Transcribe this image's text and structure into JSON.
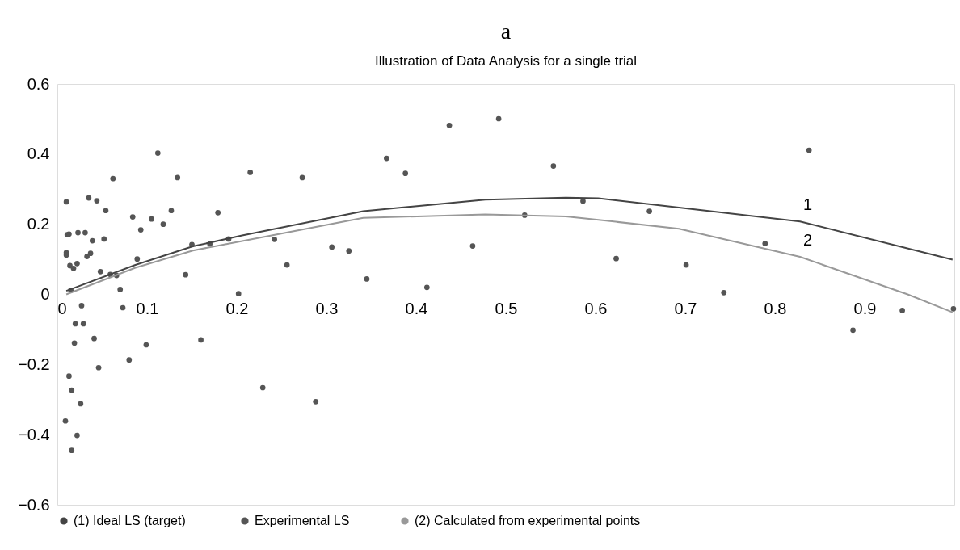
{
  "chart_data": {
    "type": "scatter",
    "title": "a",
    "subtitle": "Illustration of Data Analysis for a single trial",
    "xlim": [
      0,
      1
    ],
    "xticks": [
      0,
      0.1,
      0.2,
      0.3,
      0.4,
      0.5,
      0.6,
      0.7,
      0.8,
      0.9
    ],
    "ylim": [
      -0.6,
      0.6
    ],
    "yticks": [
      {
        "value": -0.6,
        "label": "−0.6"
      },
      {
        "value": -0.4,
        "label": "−0.4"
      },
      {
        "value": -0.2,
        "label": "−0.2"
      },
      0,
      0.2,
      0.4,
      0.6
    ],
    "grid": false,
    "legend": "bottom",
    "series": [
      {
        "name": "(1)  Ideal LS (target)",
        "type": "line",
        "color": "#444444",
        "marker": "none",
        "line_style": "solid",
        "x": [
          0.01,
          0.087,
          0.151,
          0.206,
          0.341,
          0.477,
          0.567,
          0.603,
          0.828,
          0.998
        ],
        "values": [
          0.01,
          0.084,
          0.137,
          0.168,
          0.237,
          0.27,
          0.276,
          0.274,
          0.208,
          0.099
        ]
      },
      {
        "name": "Experimental LS",
        "color": "#555555",
        "marker": "circle",
        "x": [
          0.01,
          0.011,
          0.013,
          0.01,
          0.01,
          0.014,
          0.018,
          0.022,
          0.015,
          0.023,
          0.031,
          0.035,
          0.044,
          0.039,
          0.033,
          0.037,
          0.054,
          0.052,
          0.048,
          0.062,
          0.059,
          0.066,
          0.07,
          0.084,
          0.093,
          0.089,
          0.112,
          0.105,
          0.118,
          0.127,
          0.134,
          0.143,
          0.15,
          0.17,
          0.179,
          0.191,
          0.202,
          0.215,
          0.027,
          0.02,
          0.029,
          0.019,
          0.041,
          0.073,
          0.046,
          0.08,
          0.099,
          0.16,
          0.013,
          0.016,
          0.026,
          0.009,
          0.022,
          0.016,
          0.273,
          0.242,
          0.256,
          0.229,
          0.288,
          0.306,
          0.325,
          0.345,
          0.367,
          0.388,
          0.412,
          0.437,
          0.492,
          0.463,
          0.521,
          0.553,
          0.586,
          0.623,
          0.66,
          0.701,
          0.743,
          0.789,
          0.838,
          0.887,
          0.942,
          0.999
        ],
        "values": [
          0.264,
          0.17,
          0.172,
          0.119,
          0.112,
          0.082,
          0.074,
          0.088,
          0.012,
          0.176,
          0.176,
          0.275,
          0.267,
          0.153,
          0.108,
          0.117,
          0.239,
          0.158,
          0.065,
          0.33,
          0.057,
          0.054,
          0.014,
          0.221,
          0.184,
          0.101,
          0.403,
          0.215,
          0.2,
          0.239,
          0.333,
          0.056,
          0.142,
          0.144,
          0.233,
          0.158,
          0.002,
          0.348,
          -0.032,
          -0.084,
          -0.084,
          -0.139,
          -0.126,
          -0.038,
          -0.209,
          -0.187,
          -0.144,
          -0.13,
          -0.233,
          -0.273,
          -0.312,
          -0.361,
          -0.402,
          -0.445,
          0.333,
          0.157,
          0.084,
          -0.266,
          -0.306,
          0.135,
          0.124,
          0.044,
          0.388,
          0.345,
          0.02,
          0.482,
          0.501,
          0.138,
          0.226,
          0.366,
          0.266,
          0.102,
          0.237,
          0.084,
          0.005,
          0.145,
          0.411,
          -0.102,
          -0.046,
          -0.041
        ]
      },
      {
        "name": "(2)  Calculated from experimental points",
        "type": "line",
        "color": "#999999",
        "marker": "none",
        "line_style": "solid",
        "x": [
          0.01,
          0.087,
          0.151,
          0.206,
          0.341,
          0.477,
          0.567,
          0.612,
          0.693,
          0.828,
          0.948,
          0.998
        ],
        "values": [
          0.0,
          0.076,
          0.125,
          0.152,
          0.218,
          0.228,
          0.222,
          0.21,
          0.187,
          0.107,
          0.0,
          -0.051
        ]
      }
    ],
    "annotations": [
      {
        "text": "1",
        "x": 0.828,
        "y": 0.208
      },
      {
        "text": "2",
        "x": 0.828,
        "y": 0.107
      }
    ]
  }
}
